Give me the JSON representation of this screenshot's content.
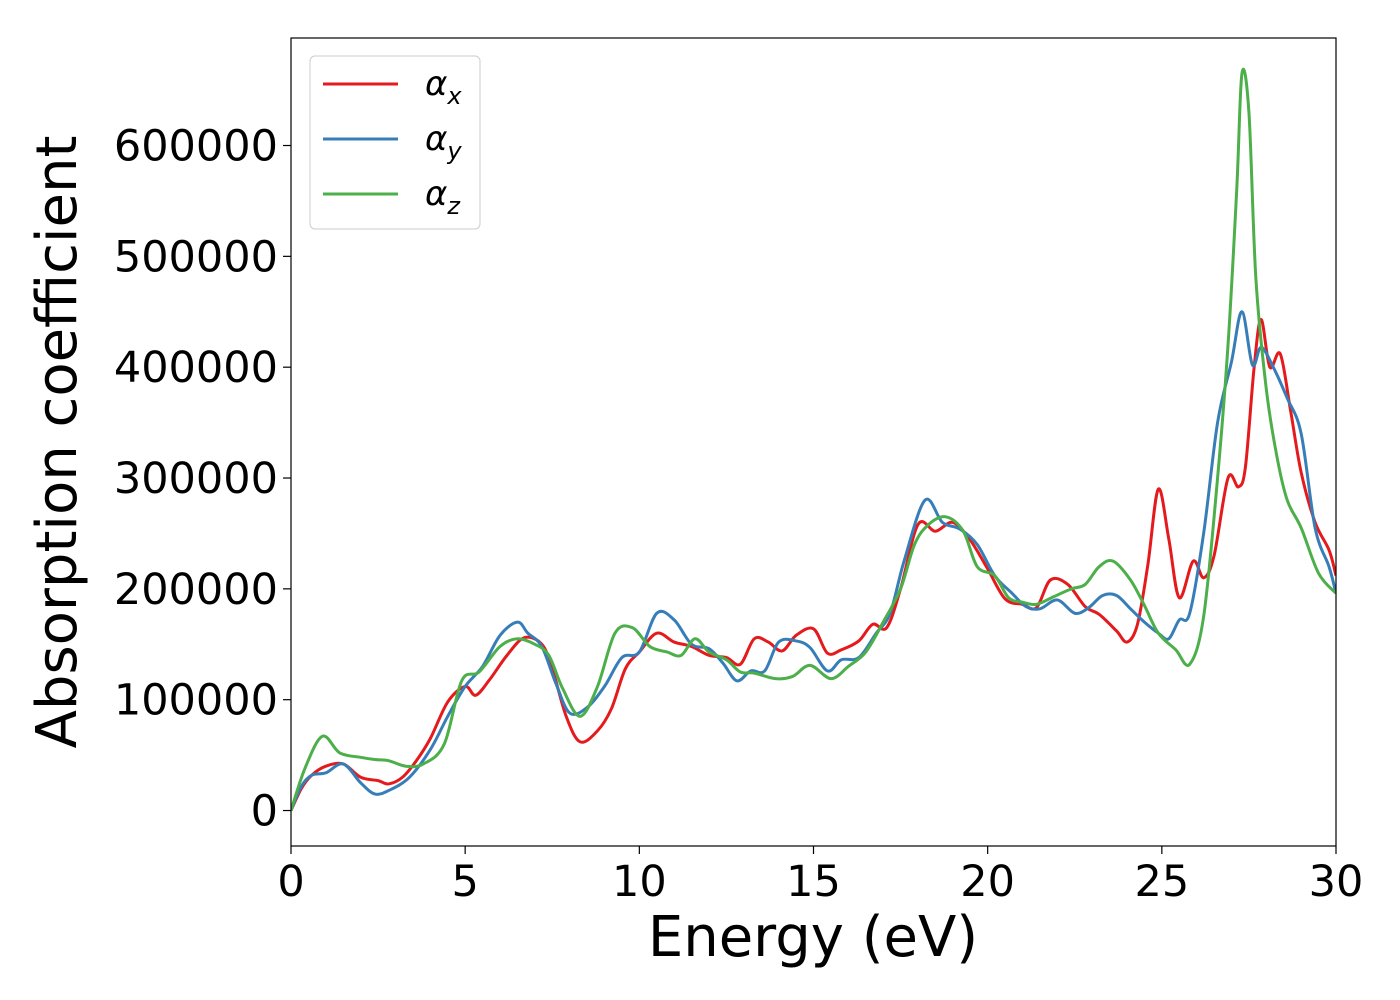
{
  "chart_data": {
    "type": "line",
    "xlabel": "Energy (eV)",
    "ylabel": "Absorption coefficient",
    "xlim": [
      0,
      30
    ],
    "ylim": [
      -32000,
      697000
    ],
    "x_ticks": [
      0,
      5,
      10,
      15,
      20,
      25,
      30
    ],
    "y_ticks": [
      0,
      100000,
      200000,
      300000,
      400000,
      500000,
      600000
    ],
    "grid": false,
    "legend_position": "top-left",
    "series": [
      {
        "name": "αx",
        "symbol": "α",
        "subscript": "x",
        "color": "#e41a1c",
        "points": [
          [
            0,
            0
          ],
          [
            0.3,
            20000
          ],
          [
            0.6,
            32000
          ],
          [
            1,
            40000
          ],
          [
            1.5,
            42000
          ],
          [
            2,
            30000
          ],
          [
            2.5,
            27000
          ],
          [
            2.8,
            24000
          ],
          [
            3.2,
            30000
          ],
          [
            3.6,
            45000
          ],
          [
            4,
            65000
          ],
          [
            4.5,
            98000
          ],
          [
            5,
            112000
          ],
          [
            5.3,
            104000
          ],
          [
            5.7,
            118000
          ],
          [
            6.2,
            140000
          ],
          [
            6.7,
            156000
          ],
          [
            7.2,
            150000
          ],
          [
            7.5,
            128000
          ],
          [
            7.9,
            85000
          ],
          [
            8.3,
            62000
          ],
          [
            8.8,
            72000
          ],
          [
            9.2,
            92000
          ],
          [
            9.6,
            128000
          ],
          [
            10,
            143000
          ],
          [
            10.5,
            160000
          ],
          [
            11,
            152000
          ],
          [
            11.5,
            148000
          ],
          [
            12,
            140000
          ],
          [
            12.5,
            138000
          ],
          [
            12.9,
            132000
          ],
          [
            13.3,
            155000
          ],
          [
            13.7,
            152000
          ],
          [
            14.1,
            144000
          ],
          [
            14.5,
            158000
          ],
          [
            15,
            164000
          ],
          [
            15.4,
            142000
          ],
          [
            15.8,
            145000
          ],
          [
            16.3,
            153000
          ],
          [
            16.7,
            168000
          ],
          [
            17.1,
            165000
          ],
          [
            17.5,
            200000
          ],
          [
            18,
            258000
          ],
          [
            18.5,
            252000
          ],
          [
            19,
            260000
          ],
          [
            19.5,
            244000
          ],
          [
            20,
            218000
          ],
          [
            20.5,
            191000
          ],
          [
            21,
            186000
          ],
          [
            21.4,
            183000
          ],
          [
            21.8,
            208000
          ],
          [
            22.3,
            204000
          ],
          [
            22.8,
            184000
          ],
          [
            23.2,
            177000
          ],
          [
            23.7,
            162000
          ],
          [
            24,
            152000
          ],
          [
            24.3,
            168000
          ],
          [
            24.6,
            222000
          ],
          [
            24.9,
            290000
          ],
          [
            25.2,
            245000
          ],
          [
            25.5,
            192000
          ],
          [
            25.9,
            225000
          ],
          [
            26.2,
            210000
          ],
          [
            26.5,
            230000
          ],
          [
            26.9,
            300000
          ],
          [
            27.2,
            292000
          ],
          [
            27.4,
            310000
          ],
          [
            27.65,
            400000
          ],
          [
            27.85,
            443000
          ],
          [
            28.1,
            400000
          ],
          [
            28.4,
            412000
          ],
          [
            28.7,
            360000
          ],
          [
            29,
            305000
          ],
          [
            29.4,
            260000
          ],
          [
            29.8,
            235000
          ],
          [
            30,
            212000
          ]
        ]
      },
      {
        "name": "αy",
        "symbol": "α",
        "subscript": "y",
        "color": "#377eb8",
        "points": [
          [
            0,
            0
          ],
          [
            0.3,
            22000
          ],
          [
            0.6,
            32000
          ],
          [
            1,
            34000
          ],
          [
            1.5,
            42000
          ],
          [
            2,
            25000
          ],
          [
            2.4,
            15000
          ],
          [
            2.8,
            18000
          ],
          [
            3.4,
            30000
          ],
          [
            4,
            55000
          ],
          [
            4.5,
            85000
          ],
          [
            5,
            112000
          ],
          [
            5.5,
            130000
          ],
          [
            6,
            158000
          ],
          [
            6.5,
            170000
          ],
          [
            6.8,
            160000
          ],
          [
            7.2,
            148000
          ],
          [
            7.6,
            115000
          ],
          [
            8,
            88000
          ],
          [
            8.5,
            93000
          ],
          [
            9,
            112000
          ],
          [
            9.5,
            138000
          ],
          [
            10,
            143000
          ],
          [
            10.5,
            178000
          ],
          [
            11,
            172000
          ],
          [
            11.5,
            150000
          ],
          [
            12,
            146000
          ],
          [
            12.4,
            133000
          ],
          [
            12.8,
            117000
          ],
          [
            13.2,
            126000
          ],
          [
            13.6,
            126000
          ],
          [
            14,
            152000
          ],
          [
            14.5,
            153000
          ],
          [
            14.9,
            147000
          ],
          [
            15.4,
            126000
          ],
          [
            15.8,
            136000
          ],
          [
            16.3,
            138000
          ],
          [
            16.8,
            160000
          ],
          [
            17.2,
            178000
          ],
          [
            17.6,
            225000
          ],
          [
            18.2,
            280000
          ],
          [
            18.7,
            260000
          ],
          [
            19.2,
            254000
          ],
          [
            19.7,
            240000
          ],
          [
            20.2,
            212000
          ],
          [
            20.7,
            196000
          ],
          [
            21.1,
            184000
          ],
          [
            21.5,
            182000
          ],
          [
            22,
            190000
          ],
          [
            22.5,
            178000
          ],
          [
            22.9,
            183000
          ],
          [
            23.3,
            194000
          ],
          [
            23.7,
            194000
          ],
          [
            24.1,
            182000
          ],
          [
            24.5,
            170000
          ],
          [
            24.9,
            160000
          ],
          [
            25.2,
            155000
          ],
          [
            25.5,
            172000
          ],
          [
            25.8,
            178000
          ],
          [
            26.2,
            250000
          ],
          [
            26.6,
            350000
          ],
          [
            27,
            405000
          ],
          [
            27.3,
            450000
          ],
          [
            27.6,
            402000
          ],
          [
            27.85,
            418000
          ],
          [
            28.2,
            400000
          ],
          [
            28.6,
            372000
          ],
          [
            29,
            340000
          ],
          [
            29.4,
            255000
          ],
          [
            29.8,
            220000
          ],
          [
            30,
            196000
          ]
        ]
      },
      {
        "name": "αz",
        "symbol": "α",
        "subscript": "z",
        "color": "#4daf4a",
        "points": [
          [
            0,
            0
          ],
          [
            0.4,
            38000
          ],
          [
            0.9,
            67000
          ],
          [
            1.4,
            52000
          ],
          [
            2,
            48000
          ],
          [
            2.4,
            46000
          ],
          [
            2.8,
            45000
          ],
          [
            3.3,
            40000
          ],
          [
            3.8,
            42000
          ],
          [
            4.4,
            60000
          ],
          [
            4.9,
            117000
          ],
          [
            5.4,
            125000
          ],
          [
            6,
            148000
          ],
          [
            6.5,
            155000
          ],
          [
            7,
            150000
          ],
          [
            7.4,
            140000
          ],
          [
            7.8,
            110000
          ],
          [
            8.3,
            85000
          ],
          [
            8.8,
            112000
          ],
          [
            9.3,
            160000
          ],
          [
            9.8,
            165000
          ],
          [
            10.3,
            148000
          ],
          [
            10.8,
            143000
          ],
          [
            11.2,
            140000
          ],
          [
            11.6,
            155000
          ],
          [
            12,
            143000
          ],
          [
            12.5,
            136000
          ],
          [
            12.9,
            125000
          ],
          [
            13.3,
            124000
          ],
          [
            13.9,
            119000
          ],
          [
            14.4,
            121000
          ],
          [
            14.9,
            131000
          ],
          [
            15.5,
            119000
          ],
          [
            16,
            130000
          ],
          [
            16.5,
            143000
          ],
          [
            17,
            170000
          ],
          [
            17.5,
            200000
          ],
          [
            17.9,
            240000
          ],
          [
            18.3,
            258000
          ],
          [
            18.8,
            265000
          ],
          [
            19.3,
            252000
          ],
          [
            19.7,
            220000
          ],
          [
            20.2,
            212000
          ],
          [
            20.6,
            192000
          ],
          [
            21,
            188000
          ],
          [
            21.4,
            186000
          ],
          [
            21.9,
            193000
          ],
          [
            22.4,
            200000
          ],
          [
            22.8,
            204000
          ],
          [
            23.2,
            220000
          ],
          [
            23.6,
            225000
          ],
          [
            24.1,
            208000
          ],
          [
            24.5,
            185000
          ],
          [
            24.9,
            160000
          ],
          [
            25.4,
            145000
          ],
          [
            25.8,
            132000
          ],
          [
            26.2,
            175000
          ],
          [
            26.6,
            300000
          ],
          [
            26.9,
            420000
          ],
          [
            27.15,
            560000
          ],
          [
            27.3,
            665000
          ],
          [
            27.5,
            630000
          ],
          [
            27.7,
            480000
          ],
          [
            28,
            380000
          ],
          [
            28.3,
            320000
          ],
          [
            28.6,
            280000
          ],
          [
            29,
            255000
          ],
          [
            29.5,
            214000
          ],
          [
            30,
            196000
          ]
        ]
      }
    ]
  }
}
